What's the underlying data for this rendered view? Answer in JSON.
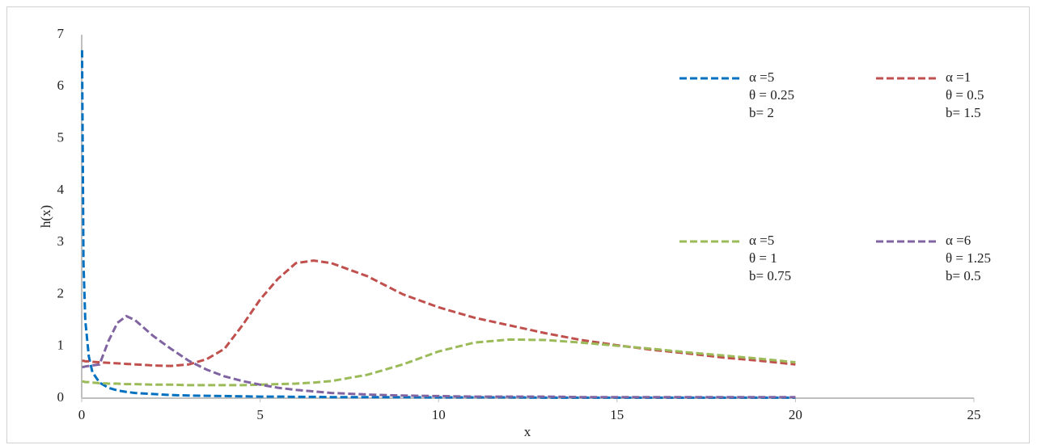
{
  "chart_data": {
    "type": "line",
    "x_label": "x",
    "y_label": "h(x)",
    "x": [
      0.01,
      0.05,
      0.1,
      0.2,
      0.3,
      0.5,
      0.75,
      1,
      1.25,
      1.5,
      2,
      2.5,
      3,
      3.5,
      4,
      4.5,
      5,
      5.5,
      6,
      6.5,
      7,
      8,
      9,
      10,
      11,
      12,
      13,
      14,
      15,
      16,
      17,
      18,
      19,
      20
    ],
    "xlim": [
      0,
      25
    ],
    "xticks": [
      0,
      5,
      10,
      15,
      20,
      25
    ],
    "ylim": [
      0,
      7
    ],
    "yticks": [
      0,
      1,
      2,
      3,
      4,
      5,
      6,
      7
    ],
    "series": [
      {
        "name": [
          "α =5",
          "θ = 0.25",
          "b= 2"
        ],
        "color": "#0070c0",
        "values": [
          6.7,
          2.6,
          1.5,
          0.8,
          0.5,
          0.3,
          0.2,
          0.15,
          0.12,
          0.1,
          0.08,
          0.06,
          0.05,
          0.045,
          0.04,
          0.035,
          0.03,
          0.03,
          0.025,
          0.025,
          0.02,
          0.02,
          0.02,
          0.015,
          0.015,
          0.015,
          0.01,
          0.01,
          0.01,
          0.01,
          0.01,
          0.01,
          0.01,
          0.01
        ]
      },
      {
        "name": [
          "α =1",
          "θ = 0.5",
          "b= 1.5"
        ],
        "color": "#c0504d",
        "values": [
          0.72,
          0.72,
          0.71,
          0.71,
          0.7,
          0.69,
          0.68,
          0.67,
          0.66,
          0.65,
          0.63,
          0.62,
          0.65,
          0.75,
          0.95,
          1.4,
          1.9,
          2.3,
          2.6,
          2.65,
          2.6,
          2.35,
          2.0,
          1.75,
          1.55,
          1.4,
          1.25,
          1.12,
          1.02,
          0.93,
          0.86,
          0.78,
          0.72,
          0.65
        ]
      },
      {
        "name": [
          "α =5",
          "θ = 1",
          "b= 0.75"
        ],
        "color": "#9bbb59",
        "values": [
          0.32,
          0.32,
          0.31,
          0.31,
          0.3,
          0.29,
          0.28,
          0.28,
          0.27,
          0.27,
          0.26,
          0.26,
          0.25,
          0.25,
          0.25,
          0.25,
          0.26,
          0.27,
          0.28,
          0.3,
          0.33,
          0.45,
          0.65,
          0.9,
          1.07,
          1.13,
          1.12,
          1.07,
          1.01,
          0.95,
          0.88,
          0.82,
          0.76,
          0.69
        ]
      },
      {
        "name": [
          "α =6",
          "θ = 1.25",
          "b= 0.5"
        ],
        "color": "#8064a2",
        "values": [
          0.6,
          0.6,
          0.61,
          0.62,
          0.63,
          0.65,
          1.1,
          1.45,
          1.58,
          1.5,
          1.2,
          0.95,
          0.72,
          0.55,
          0.42,
          0.33,
          0.26,
          0.2,
          0.16,
          0.13,
          0.1,
          0.07,
          0.05,
          0.04,
          0.03,
          0.03,
          0.03,
          0.02,
          0.02,
          0.02,
          0.02,
          0.02,
          0.02,
          0.02
        ]
      }
    ]
  }
}
